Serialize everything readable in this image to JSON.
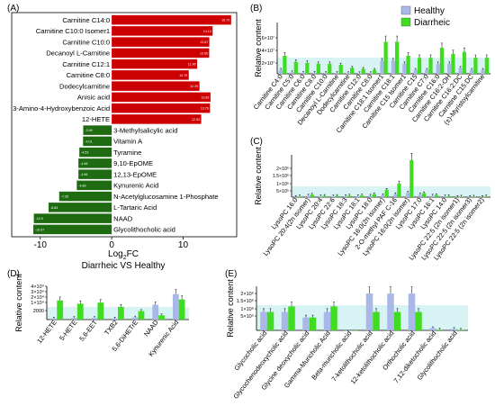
{
  "panel_labels": {
    "A": "(A)",
    "B": "(B)",
    "C": "(C)",
    "D": "(D)",
    "E": "(E)"
  },
  "legend": {
    "healthy": "Healthy",
    "diarrheic": "Diarrheic"
  },
  "colors": {
    "up_bar": "#cc0000",
    "down_bar": "#1e6b12",
    "healthy": "#a9b8e8",
    "diarrheic": "#3fdc22",
    "band": "#d8f3f4"
  },
  "chart_data": [
    {
      "panel": "A",
      "type": "bar",
      "orientation": "horizontal",
      "xlabel": "Log2FC",
      "xlabel_main": "Log",
      "xlabel_sub": "2",
      "xlabel_tail": "FC",
      "subtitle": "Diarrheic VS Healthy",
      "xlim": [
        -14,
        17.5
      ],
      "xticks": [
        "-10",
        "0",
        "10"
      ],
      "categories": [
        "Carnitine C14:0",
        "Carnitine C10:0 Isomer1",
        "Carnitine C10:0",
        "Decanoyl L-Carnitine",
        "Carnitine C12:1",
        "Carnitine C8:0",
        "Dodecylcarnitine",
        "Anisic acid",
        "3-Amino-4-Hydroxybenzoic Acid",
        "12-HETE",
        "3-Methylsalicylic acid",
        "Vitamin A",
        "Tyramine",
        "9,10-EpOME",
        "12,13-EpOME",
        "Kynurenic Acid",
        "N-Acetylglucosamine 1-Phosphate",
        "L-Tartaric Acid",
        "NAAD",
        "Glycolithocholic acid"
      ],
      "values": [
        16.72,
        14.13,
        13.67,
        13.65,
        11.96,
        10.79,
        12.29,
        13.83,
        13.76,
        12.53,
        -3.99,
        -4.01,
        -4.53,
        -4.66,
        -4.66,
        -4.89,
        -7.35,
        -8.84,
        -10.9,
        -10.97
      ],
      "value_labels": [
        "16.72",
        "14.13",
        "13.67",
        "13.65",
        "11.96",
        "10.79",
        "12.29",
        "13.83",
        "13.76",
        "12.53",
        "-3.99",
        "-4.01",
        "-4.53",
        "-4.66",
        "-4.66",
        "-4.89",
        "-7.35",
        "-8.84",
        "-10.9",
        "-10.97"
      ]
    },
    {
      "panel": "B",
      "type": "bar",
      "ylabel": "Relative content",
      "yticks": [
        "2×10⁷",
        "4×10⁷",
        "6×10⁷"
      ],
      "categories": [
        "Carnitine C4:0",
        "Carnitine C5:0",
        "Carnitine C6:0",
        "Carnitine C8:0",
        "Carnitine C10:0",
        "Decanoyl L-Carnitine",
        "Dodecylcarnitine",
        "Carnitine C12:0",
        "Carnitine C8:0",
        "Carnitine C18:1 Isomer1",
        "Carnitine C18:1",
        "Carnitine C15 Isomer1",
        "Carnitine C15",
        "Carnitine C7:0",
        "Carnitine C16:0",
        "Carnitine C16:2-OH",
        "Carnitine C16:2:DC",
        "Carnitine C15:DC",
        "(±)-Myristoylcarnitine"
      ],
      "series": [
        {
          "name": "Healthy",
          "values": [
            4,
            1.5,
            1,
            1,
            0.8,
            0.8,
            0.6,
            0.6,
            0.6,
            13,
            13,
            10,
            4,
            4,
            10,
            10,
            6,
            4,
            4
          ]
        },
        {
          "name": "Diarrheic",
          "values": [
            18,
            12,
            11,
            10,
            10,
            9,
            6,
            5,
            4,
            32,
            32,
            18,
            16,
            16,
            26,
            20,
            22,
            16,
            16
          ]
        }
      ]
    },
    {
      "panel": "C",
      "type": "bar",
      "ylabel": "Relative content",
      "yticks": [
        "5×10⁵",
        "1×10⁶",
        "1.5×10⁶",
        "2×10⁶"
      ],
      "categories": [
        "LysoPC 16:0",
        "LysoPC 20:4(2n isomer)",
        "LysoPC 20:4",
        "LysoPC 22:6",
        "LysoPC 18:3",
        "LysoPC 18:1",
        "LysoPC 18:0",
        "LysoPC 16:0(2n isomer)",
        "2-O-methyl PAF C-16",
        "LysoPC 16:0(2n isomer)",
        "LysoPC 17:0",
        "LysoPC 16:1",
        "LysoPC 14:0",
        "LysoPC 22:5 (2n isomer1)",
        "LysoPC 22:5 (2n isomer3)",
        "LysoPC 22:5 (2n isomer2)"
      ],
      "series": [
        {
          "name": "Healthy",
          "values": [
            1,
            6,
            3,
            3,
            4,
            4,
            6,
            8,
            12,
            18,
            10,
            6,
            3,
            1,
            1,
            1
          ]
        },
        {
          "name": "Diarrheic",
          "values": [
            3,
            10,
            5,
            5,
            6,
            7,
            12,
            30,
            55,
            150,
            16,
            8,
            4,
            2,
            2,
            3
          ]
        }
      ]
    },
    {
      "panel": "D",
      "type": "bar",
      "ylabel": "Relative content",
      "yticks": [
        "2000",
        "1×10⁴",
        "2×10⁴",
        "3×10⁴",
        "4×10⁴"
      ],
      "categories": [
        "12-HETE",
        "5-HETE",
        "5,6-EET",
        "TXB2",
        "5,6-DiHETrE",
        "NAAD",
        "Kynurenic Acid"
      ],
      "series": [
        {
          "name": "Healthy",
          "values": [
            100,
            150,
            150,
            100,
            200,
            1400,
            2400
          ]
        },
        {
          "name": "Diarrheic",
          "values": [
            1800,
            1500,
            1600,
            1200,
            800,
            400,
            1900
          ]
        }
      ]
    },
    {
      "panel": "E",
      "type": "bar",
      "ylabel": "Relative content",
      "yticks": [
        "5×10⁵",
        "1×10⁶",
        "1.5×10⁶",
        "2×10⁶"
      ],
      "categories": [
        "Glycocholic acid",
        "Glycochenodeoxycholic acid",
        "Glycine deoxycholic acid",
        "Gamma-Muricholic Acid",
        "Beta-muricholic acid",
        "7-ketolithocholic acid",
        "12-ketolithocholic acid",
        "Orthocholic acid",
        "7,12-diketocholic acid",
        "Glycolithocholic acid"
      ],
      "series": [
        {
          "name": "Healthy",
          "values": [
            100,
            100,
            70,
            100,
            0,
            200,
            200,
            200,
            12,
            8
          ]
        },
        {
          "name": "Diarrheic",
          "values": [
            100,
            130,
            70,
            130,
            0,
            100,
            100,
            100,
            4,
            3
          ]
        }
      ]
    }
  ]
}
